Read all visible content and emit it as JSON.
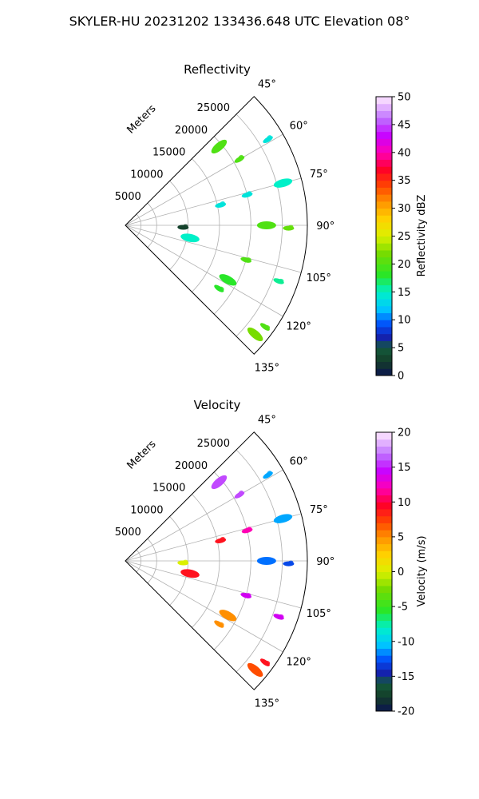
{
  "figure": {
    "suptitle": "SKYLER-HU  20231202  133436.648 UTC Elevation 08°"
  },
  "chart_data": [
    {
      "type": "polar-sector",
      "title": "Reflectivity",
      "radial_label": "Meters",
      "radial_ticks": [
        5000,
        10000,
        15000,
        20000,
        25000
      ],
      "rmax": 29000,
      "theta_ticks_deg": [
        45,
        60,
        75,
        90,
        105,
        120,
        135
      ],
      "theta_range_deg": [
        45,
        135
      ],
      "grid": true,
      "colorbar": {
        "label": "Reflectivity dBZ",
        "range": [
          0,
          50
        ],
        "ticks": [
          0,
          5,
          10,
          15,
          20,
          25,
          30,
          35,
          40,
          45,
          50
        ]
      },
      "echo_regions": [
        {
          "az_deg": 50,
          "r_m": 19500,
          "value": 20
        },
        {
          "az_deg": 60,
          "r_m": 21000,
          "value": 20
        },
        {
          "az_deg": 59,
          "r_m": 26500,
          "value": 14
        },
        {
          "az_deg": 75,
          "r_m": 26000,
          "value": 15
        },
        {
          "az_deg": 76,
          "r_m": 20000,
          "value": 14
        },
        {
          "az_deg": 78,
          "r_m": 15500,
          "value": 14
        },
        {
          "az_deg": 90,
          "r_m": 22500,
          "value": 20
        },
        {
          "az_deg": 91,
          "r_m": 26000,
          "value": 21
        },
        {
          "az_deg": 92,
          "r_m": 9200,
          "value": 3
        },
        {
          "az_deg": 101,
          "r_m": 10500,
          "value": 15
        },
        {
          "az_deg": 106,
          "r_m": 20000,
          "value": 20
        },
        {
          "az_deg": 110,
          "r_m": 26000,
          "value": 16
        },
        {
          "az_deg": 118,
          "r_m": 18500,
          "value": 18
        },
        {
          "az_deg": 124,
          "r_m": 18000,
          "value": 18
        },
        {
          "az_deg": 126,
          "r_m": 27500,
          "value": 20
        },
        {
          "az_deg": 130,
          "r_m": 27000,
          "value": 22
        }
      ]
    },
    {
      "type": "polar-sector",
      "title": "Velocity",
      "radial_label": "Meters",
      "radial_ticks": [
        5000,
        10000,
        15000,
        20000,
        25000
      ],
      "rmax": 29000,
      "theta_ticks_deg": [
        45,
        60,
        75,
        90,
        105,
        120,
        135
      ],
      "theta_range_deg": [
        45,
        135
      ],
      "grid": true,
      "colorbar": {
        "label": "Velocity (m/s)",
        "range": [
          -20,
          20
        ],
        "ticks": [
          -20,
          -15,
          -10,
          -5,
          0,
          5,
          10,
          15,
          20
        ]
      },
      "echo_regions": [
        {
          "az_deg": 50,
          "r_m": 19500,
          "value": 16
        },
        {
          "az_deg": 60,
          "r_m": 21000,
          "value": 16
        },
        {
          "az_deg": 59,
          "r_m": 26500,
          "value": -11
        },
        {
          "az_deg": 75,
          "r_m": 26000,
          "value": -11
        },
        {
          "az_deg": 76,
          "r_m": 20000,
          "value": 12
        },
        {
          "az_deg": 78,
          "r_m": 15500,
          "value": 9
        },
        {
          "az_deg": 90,
          "r_m": 22500,
          "value": -12
        },
        {
          "az_deg": 91,
          "r_m": 26000,
          "value": -13
        },
        {
          "az_deg": 92,
          "r_m": 9200,
          "value": 0
        },
        {
          "az_deg": 101,
          "r_m": 10500,
          "value": 9
        },
        {
          "az_deg": 106,
          "r_m": 20000,
          "value": 14
        },
        {
          "az_deg": 110,
          "r_m": 26000,
          "value": 14
        },
        {
          "az_deg": 118,
          "r_m": 18500,
          "value": 5
        },
        {
          "az_deg": 124,
          "r_m": 18000,
          "value": 5
        },
        {
          "az_deg": 126,
          "r_m": 27500,
          "value": 9
        },
        {
          "az_deg": 130,
          "r_m": 27000,
          "value": 7
        }
      ]
    }
  ]
}
